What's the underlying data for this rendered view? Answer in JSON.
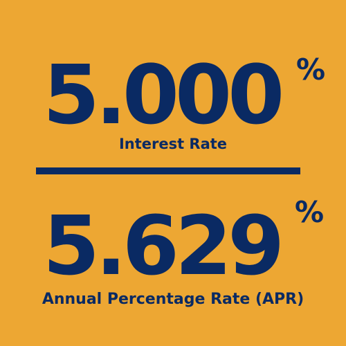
{
  "interest": {
    "value": "5.000",
    "percent_symbol": "%",
    "label": "Interest Rate"
  },
  "apr": {
    "value": "5.629",
    "percent_symbol": "%",
    "label": "Annual Percentage Rate (APR)"
  },
  "colors": {
    "background": "#EDA733",
    "text": "#0A2A63"
  }
}
